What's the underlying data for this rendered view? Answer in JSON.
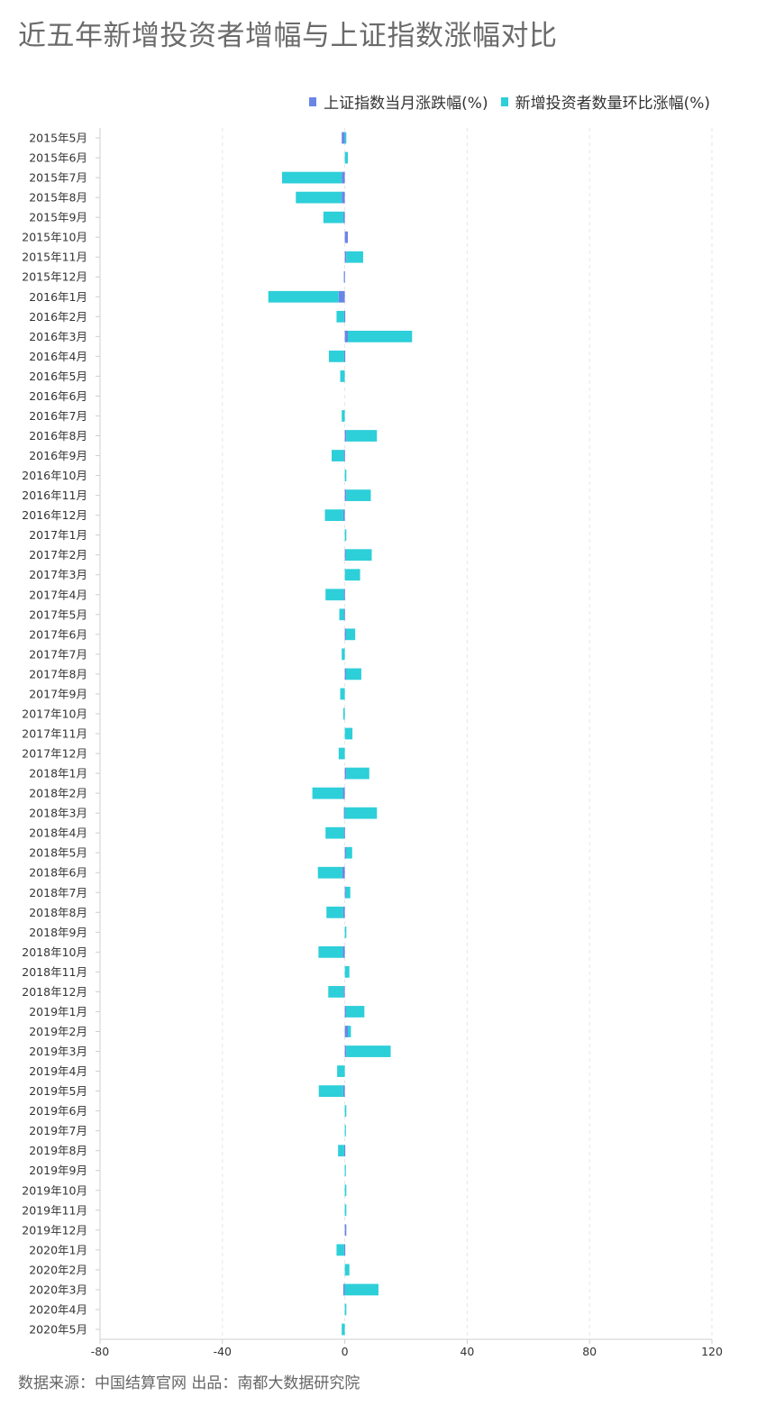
{
  "chart_data": {
    "type": "bar",
    "orientation": "horizontal",
    "title": "近五年新增投资者增幅与上证指数涨幅对比",
    "source": "数据来源：中国结算官网 出品：南都大数据研究院",
    "xlim": [
      -80,
      120
    ],
    "x_ticks": [
      "-80",
      "-40",
      "0",
      "40",
      "80",
      "120"
    ],
    "grid": "vertical dashed",
    "legend_position": "top-right",
    "categories": [
      "2015年5月",
      "2015年6月",
      "2015年7月",
      "2015年8月",
      "2015年9月",
      "2015年10月",
      "2015年11月",
      "2015年12月",
      "2016年1月",
      "2016年2月",
      "2016年3月",
      "2016年4月",
      "2016年5月",
      "2016年6月",
      "2016年7月",
      "2016年8月",
      "2016年9月",
      "2016年10月",
      "2016年11月",
      "2016年12月",
      "2017年1月",
      "2017年2月",
      "2017年3月",
      "2017年4月",
      "2017年5月",
      "2017年6月",
      "2017年7月",
      "2017年8月",
      "2017年9月",
      "2017年10月",
      "2017年11月",
      "2017年12月",
      "2018年1月",
      "2018年2月",
      "2018年3月",
      "2018年4月",
      "2018年5月",
      "2018年6月",
      "2018年7月",
      "2018年8月",
      "2018年9月",
      "2018年10月",
      "2018年11月",
      "2018年12月",
      "2019年1月",
      "2019年2月",
      "2019年3月",
      "2019年4月",
      "2019年5月",
      "2019年6月",
      "2019年7月",
      "2019年8月",
      "2019年9月",
      "2019年10月",
      "2019年11月",
      "2019年12月",
      "2020年1月",
      "2020年2月",
      "2020年3月",
      "2020年4月",
      "2020年5月"
    ],
    "series": [
      {
        "name": "上证指数当月涨跌幅(%)",
        "color": "#6b85e6",
        "values": [
          -1.0,
          0.0,
          -1.0,
          -1.0,
          -0.5,
          1.0,
          0.5,
          -0.3,
          -2.0,
          -0.2,
          1.0,
          -0.2,
          0.0,
          0.0,
          0.0,
          0.5,
          -0.3,
          0.0,
          0.5,
          -0.5,
          0.0,
          0.3,
          0.0,
          -0.3,
          -0.3,
          0.4,
          0.0,
          0.4,
          0.0,
          0.0,
          0.0,
          0.0,
          0.5,
          -0.6,
          -0.3,
          -0.3,
          0.4,
          -0.8,
          0.3,
          -0.5,
          0.0,
          -0.6,
          0.0,
          -0.4,
          0.4,
          1.0,
          0.5,
          0.0,
          -0.5,
          0.0,
          0.0,
          -0.2,
          0.0,
          0.0,
          0.0,
          0.5,
          -0.2,
          0.0,
          -0.5,
          0.0,
          0.0
        ]
      },
      {
        "name": "新增投资者数量环比涨幅(%)",
        "color": "#2dcfd9",
        "values": [
          0.5,
          1.0,
          -19.5,
          -15.0,
          -6.5,
          0.0,
          5.5,
          0.0,
          -23.0,
          -2.5,
          21.0,
          -5.0,
          -1.5,
          0.0,
          -1.0,
          10.0,
          -4.0,
          0.5,
          8.0,
          -6.0,
          0.5,
          8.5,
          5.0,
          -6.0,
          -1.5,
          3.0,
          -1.0,
          5.0,
          -1.5,
          -0.5,
          2.5,
          -2.0,
          7.5,
          -10.0,
          10.5,
          -6.0,
          2.0,
          -8.0,
          1.5,
          -5.5,
          0.5,
          -8.0,
          1.5,
          -5.0,
          6.0,
          1.0,
          14.5,
          -2.5,
          -8.0,
          0.5,
          0.3,
          -2.0,
          0.3,
          0.5,
          0.5,
          0.0,
          -2.5,
          1.5,
          11.0,
          0.5,
          -1.0
        ]
      }
    ]
  }
}
